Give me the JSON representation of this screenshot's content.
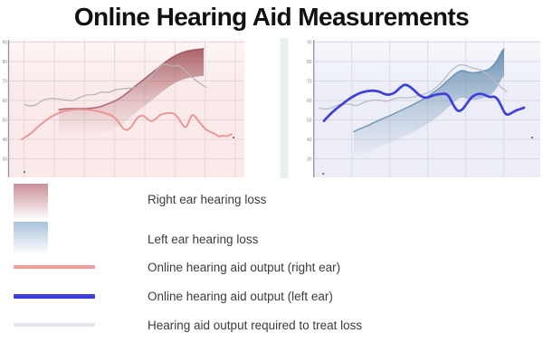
{
  "title": "Online Hearing Aid Measurements",
  "legend": {
    "items": [
      {
        "label": "Right ear hearing loss",
        "swatch": "gradient",
        "color": "#c98f97"
      },
      {
        "label": "Left ear hearing loss",
        "swatch": "gradient",
        "color": "#a9c3d9"
      },
      {
        "label": "Online hearing aid output (right ear)",
        "swatch": "line",
        "color": "#f29b9b"
      },
      {
        "label": "Online hearing aid output (left ear)",
        "swatch": "line",
        "color": "#3e3edd"
      },
      {
        "label": "Hearing aid output required to treat loss",
        "swatch": "line",
        "color": "#e3e3ec"
      }
    ]
  },
  "chart_data": [
    {
      "type": "area",
      "id": "right-ear",
      "y_ticks": [
        90,
        80,
        70,
        60,
        50,
        40,
        30
      ],
      "ylim": [
        30,
        90
      ],
      "x_axis": "unlabeled",
      "grid": true,
      "colors": {
        "bg_top": "#fdf6f6",
        "bg": "#fbeaea",
        "grid": "#e4d5d6",
        "axis": "#9b9b9b",
        "area": "#9c4a52",
        "output": "#ec9393",
        "required": "#b9b3b4"
      },
      "series": [
        {
          "name": "Right ear hearing loss",
          "role": "loss-area",
          "points": [
            [
              0.212,
              55.3
            ],
            [
              0.231,
              55.6
            ],
            [
              0.269,
              55.8
            ],
            [
              0.308,
              55.8
            ],
            [
              0.346,
              56.0
            ],
            [
              0.377,
              56.5
            ],
            [
              0.404,
              57.5
            ],
            [
              0.431,
              58.8
            ],
            [
              0.454,
              60.0
            ],
            [
              0.481,
              62.0
            ],
            [
              0.508,
              64.5
            ],
            [
              0.538,
              67.5
            ],
            [
              0.569,
              70.5
            ],
            [
              0.6,
              73.5
            ],
            [
              0.631,
              76.5
            ],
            [
              0.662,
              79.5
            ],
            [
              0.692,
              82.0
            ],
            [
              0.723,
              84.0
            ],
            [
              0.754,
              85.3
            ],
            [
              0.785,
              86.0
            ],
            [
              0.812,
              86.4
            ],
            [
              0.827,
              86.6
            ]
          ]
        },
        {
          "name": "Hearing aid output required to treat loss",
          "role": "required",
          "points": [
            [
              0.065,
              58.0
            ],
            [
              0.088,
              57.2
            ],
            [
              0.115,
              57.8
            ],
            [
              0.146,
              60.3
            ],
            [
              0.177,
              61.0
            ],
            [
              0.208,
              60.8
            ],
            [
              0.238,
              60.3
            ],
            [
              0.269,
              60.0
            ],
            [
              0.3,
              61.5
            ],
            [
              0.331,
              62.8
            ],
            [
              0.362,
              63.0
            ],
            [
              0.392,
              64.3
            ],
            [
              0.423,
              64.2
            ],
            [
              0.454,
              65.5
            ],
            [
              0.485,
              66.0
            ],
            [
              0.515,
              66.3
            ],
            [
              0.546,
              67.0
            ],
            [
              0.569,
              68.5
            ],
            [
              0.592,
              71.0
            ],
            [
              0.615,
              74.0
            ],
            [
              0.638,
              77.0
            ],
            [
              0.658,
              78.6
            ],
            [
              0.677,
              78.2
            ],
            [
              0.7,
              77.6
            ],
            [
              0.719,
              78.0
            ],
            [
              0.742,
              76.0
            ],
            [
              0.765,
              73.5
            ],
            [
              0.788,
              71.0
            ],
            [
              0.808,
              69.0
            ],
            [
              0.827,
              67.5
            ],
            [
              0.838,
              66.8
            ]
          ]
        },
        {
          "name": "Online hearing aid output (right ear)",
          "role": "output",
          "points": [
            [
              0.054,
              40.0
            ],
            [
              0.092,
              43.0
            ],
            [
              0.123,
              46.5
            ],
            [
              0.154,
              49.5
            ],
            [
              0.185,
              52.0
            ],
            [
              0.215,
              53.7
            ],
            [
              0.246,
              54.8
            ],
            [
              0.277,
              55.3
            ],
            [
              0.308,
              55.4
            ],
            [
              0.338,
              55.2
            ],
            [
              0.369,
              54.7
            ],
            [
              0.4,
              53.8
            ],
            [
              0.431,
              52.5
            ],
            [
              0.454,
              50.5
            ],
            [
              0.473,
              47.5
            ],
            [
              0.488,
              45.3
            ],
            [
              0.504,
              45.0
            ],
            [
              0.523,
              47.0
            ],
            [
              0.538,
              50.0
            ],
            [
              0.554,
              51.8
            ],
            [
              0.569,
              52.2
            ],
            [
              0.588,
              50.5
            ],
            [
              0.604,
              49.4
            ],
            [
              0.623,
              50.5
            ],
            [
              0.642,
              52.5
            ],
            [
              0.662,
              53.3
            ],
            [
              0.681,
              53.5
            ],
            [
              0.7,
              53.2
            ],
            [
              0.719,
              51.0
            ],
            [
              0.738,
              47.5
            ],
            [
              0.754,
              46.6
            ],
            [
              0.777,
              52.3
            ],
            [
              0.792,
              51.5
            ],
            [
              0.808,
              49.0
            ],
            [
              0.823,
              46.8
            ],
            [
              0.838,
              45.0
            ],
            [
              0.858,
              43.7
            ],
            [
              0.877,
              42.6
            ],
            [
              0.892,
              41.5
            ],
            [
              0.908,
              41.9
            ],
            [
              0.923,
              41.6
            ],
            [
              0.934,
              42.0
            ],
            [
              0.946,
              42.7
            ]
          ]
        }
      ]
    },
    {
      "type": "area",
      "id": "left-ear",
      "y_ticks": [
        90,
        80,
        70,
        60,
        50,
        40,
        30
      ],
      "ylim": [
        30,
        90
      ],
      "x_axis": "unlabeled",
      "grid": true,
      "colors": {
        "bg_top": "#f7f8fc",
        "bg": "#ecedf7",
        "grid": "#d8d9e5",
        "axis": "#9b9ba4",
        "area": "#5d88ab",
        "output": "#3f3fda",
        "required": "#b9bcc7"
      },
      "series": [
        {
          "name": "Left ear hearing loss",
          "role": "loss-area",
          "points": [
            [
              0.176,
              44.0
            ],
            [
              0.204,
              45.5
            ],
            [
              0.236,
              47.0
            ],
            [
              0.268,
              48.8
            ],
            [
              0.3,
              50.5
            ],
            [
              0.332,
              52.0
            ],
            [
              0.364,
              53.8
            ],
            [
              0.396,
              55.5
            ],
            [
              0.428,
              57.3
            ],
            [
              0.46,
              59.2
            ],
            [
              0.492,
              61.3
            ],
            [
              0.524,
              63.8
            ],
            [
              0.556,
              66.5
            ],
            [
              0.584,
              69.5
            ],
            [
              0.608,
              72.0
            ],
            [
              0.632,
              74.3
            ],
            [
              0.656,
              75.4
            ],
            [
              0.68,
              74.6
            ],
            [
              0.704,
              74.2
            ],
            [
              0.728,
              74.6
            ],
            [
              0.752,
              75.3
            ],
            [
              0.772,
              76.0
            ],
            [
              0.792,
              78.0
            ],
            [
              0.808,
              80.5
            ],
            [
              0.82,
              83.0
            ],
            [
              0.832,
              85.5
            ],
            [
              0.84,
              86.5
            ]
          ]
        },
        {
          "name": "Hearing aid output required to treat loss",
          "role": "required",
          "points": [
            [
              0.024,
              56.0
            ],
            [
              0.052,
              55.6
            ],
            [
              0.08,
              56.2
            ],
            [
              0.108,
              57.8
            ],
            [
              0.136,
              58.2
            ],
            [
              0.164,
              58.0
            ],
            [
              0.188,
              57.4
            ],
            [
              0.212,
              58.6
            ],
            [
              0.24,
              59.7
            ],
            [
              0.268,
              60.2
            ],
            [
              0.296,
              60.0
            ],
            [
              0.324,
              59.7
            ],
            [
              0.352,
              60.8
            ],
            [
              0.38,
              61.5
            ],
            [
              0.408,
              61.3
            ],
            [
              0.436,
              61.7
            ],
            [
              0.464,
              62.5
            ],
            [
              0.492,
              63.5
            ],
            [
              0.52,
              65.0
            ],
            [
              0.548,
              67.5
            ],
            [
              0.576,
              71.0
            ],
            [
              0.6,
              74.5
            ],
            [
              0.624,
              77.0
            ],
            [
              0.644,
              78.3
            ],
            [
              0.668,
              78.0
            ],
            [
              0.692,
              77.0
            ],
            [
              0.716,
              76.3
            ],
            [
              0.74,
              75.5
            ],
            [
              0.76,
              74.0
            ],
            [
              0.78,
              72.0
            ],
            [
              0.8,
              69.8
            ],
            [
              0.82,
              67.5
            ],
            [
              0.836,
              65.8
            ],
            [
              0.852,
              64.5
            ]
          ]
        },
        {
          "name": "Online hearing aid output (left ear)",
          "role": "output",
          "points": [
            [
              0.044,
              49.5
            ],
            [
              0.068,
              52.5
            ],
            [
              0.096,
              55.5
            ],
            [
              0.124,
              58.0
            ],
            [
              0.152,
              60.5
            ],
            [
              0.18,
              62.5
            ],
            [
              0.208,
              64.0
            ],
            [
              0.236,
              64.8
            ],
            [
              0.264,
              65.0
            ],
            [
              0.288,
              64.5
            ],
            [
              0.312,
              63.3
            ],
            [
              0.332,
              63.0
            ],
            [
              0.356,
              64.0
            ],
            [
              0.38,
              66.5
            ],
            [
              0.4,
              68.0
            ],
            [
              0.42,
              67.3
            ],
            [
              0.44,
              65.5
            ],
            [
              0.46,
              63.3
            ],
            [
              0.48,
              61.8
            ],
            [
              0.5,
              61.5
            ],
            [
              0.52,
              62.3
            ],
            [
              0.54,
              63.0
            ],
            [
              0.56,
              63.3
            ],
            [
              0.58,
              63.4
            ],
            [
              0.596,
              62.0
            ],
            [
              0.612,
              58.5
            ],
            [
              0.628,
              55.5
            ],
            [
              0.64,
              54.6
            ],
            [
              0.656,
              55.5
            ],
            [
              0.676,
              58.5
            ],
            [
              0.696,
              61.5
            ],
            [
              0.716,
              63.0
            ],
            [
              0.736,
              63.4
            ],
            [
              0.756,
              62.8
            ],
            [
              0.776,
              61.8
            ],
            [
              0.796,
              61.9
            ],
            [
              0.812,
              60.5
            ],
            [
              0.828,
              57.0
            ],
            [
              0.844,
              53.5
            ],
            [
              0.856,
              52.7
            ],
            [
              0.872,
              53.5
            ],
            [
              0.892,
              54.8
            ],
            [
              0.912,
              55.6
            ],
            [
              0.928,
              56.3
            ]
          ]
        }
      ]
    }
  ]
}
